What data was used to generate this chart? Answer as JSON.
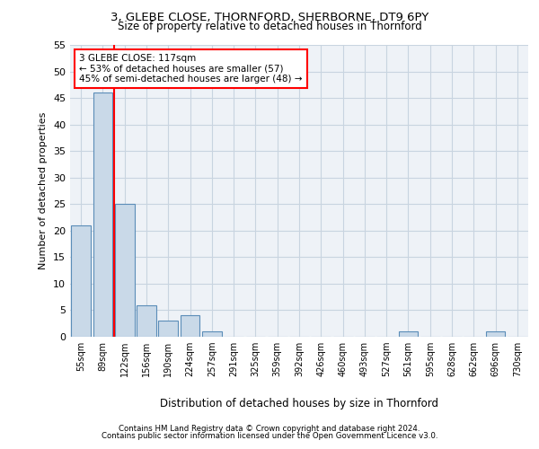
{
  "title1": "3, GLEBE CLOSE, THORNFORD, SHERBORNE, DT9 6PY",
  "title2": "Size of property relative to detached houses in Thornford",
  "xlabel": "Distribution of detached houses by size in Thornford",
  "ylabel": "Number of detached properties",
  "bin_labels": [
    "55sqm",
    "89sqm",
    "122sqm",
    "156sqm",
    "190sqm",
    "224sqm",
    "257sqm",
    "291sqm",
    "325sqm",
    "359sqm",
    "392sqm",
    "426sqm",
    "460sqm",
    "493sqm",
    "527sqm",
    "561sqm",
    "595sqm",
    "628sqm",
    "662sqm",
    "696sqm",
    "730sqm"
  ],
  "bar_values": [
    21,
    46,
    25,
    6,
    3,
    4,
    1,
    0,
    0,
    0,
    0,
    0,
    0,
    0,
    0,
    1,
    0,
    0,
    0,
    1,
    0
  ],
  "bar_color": "#c9d9e8",
  "bar_edge_color": "#5b8db8",
  "subject_line_color": "red",
  "annotation_text": "3 GLEBE CLOSE: 117sqm\n← 53% of detached houses are smaller (57)\n45% of semi-detached houses are larger (48) →",
  "annotation_box_color": "white",
  "annotation_box_edge_color": "red",
  "ylim": [
    0,
    55
  ],
  "yticks": [
    0,
    5,
    10,
    15,
    20,
    25,
    30,
    35,
    40,
    45,
    50,
    55
  ],
  "footer1": "Contains HM Land Registry data © Crown copyright and database right 2024.",
  "footer2": "Contains public sector information licensed under the Open Government Licence v3.0.",
  "bg_color": "#eef2f7",
  "grid_color": "#c8d4e0"
}
